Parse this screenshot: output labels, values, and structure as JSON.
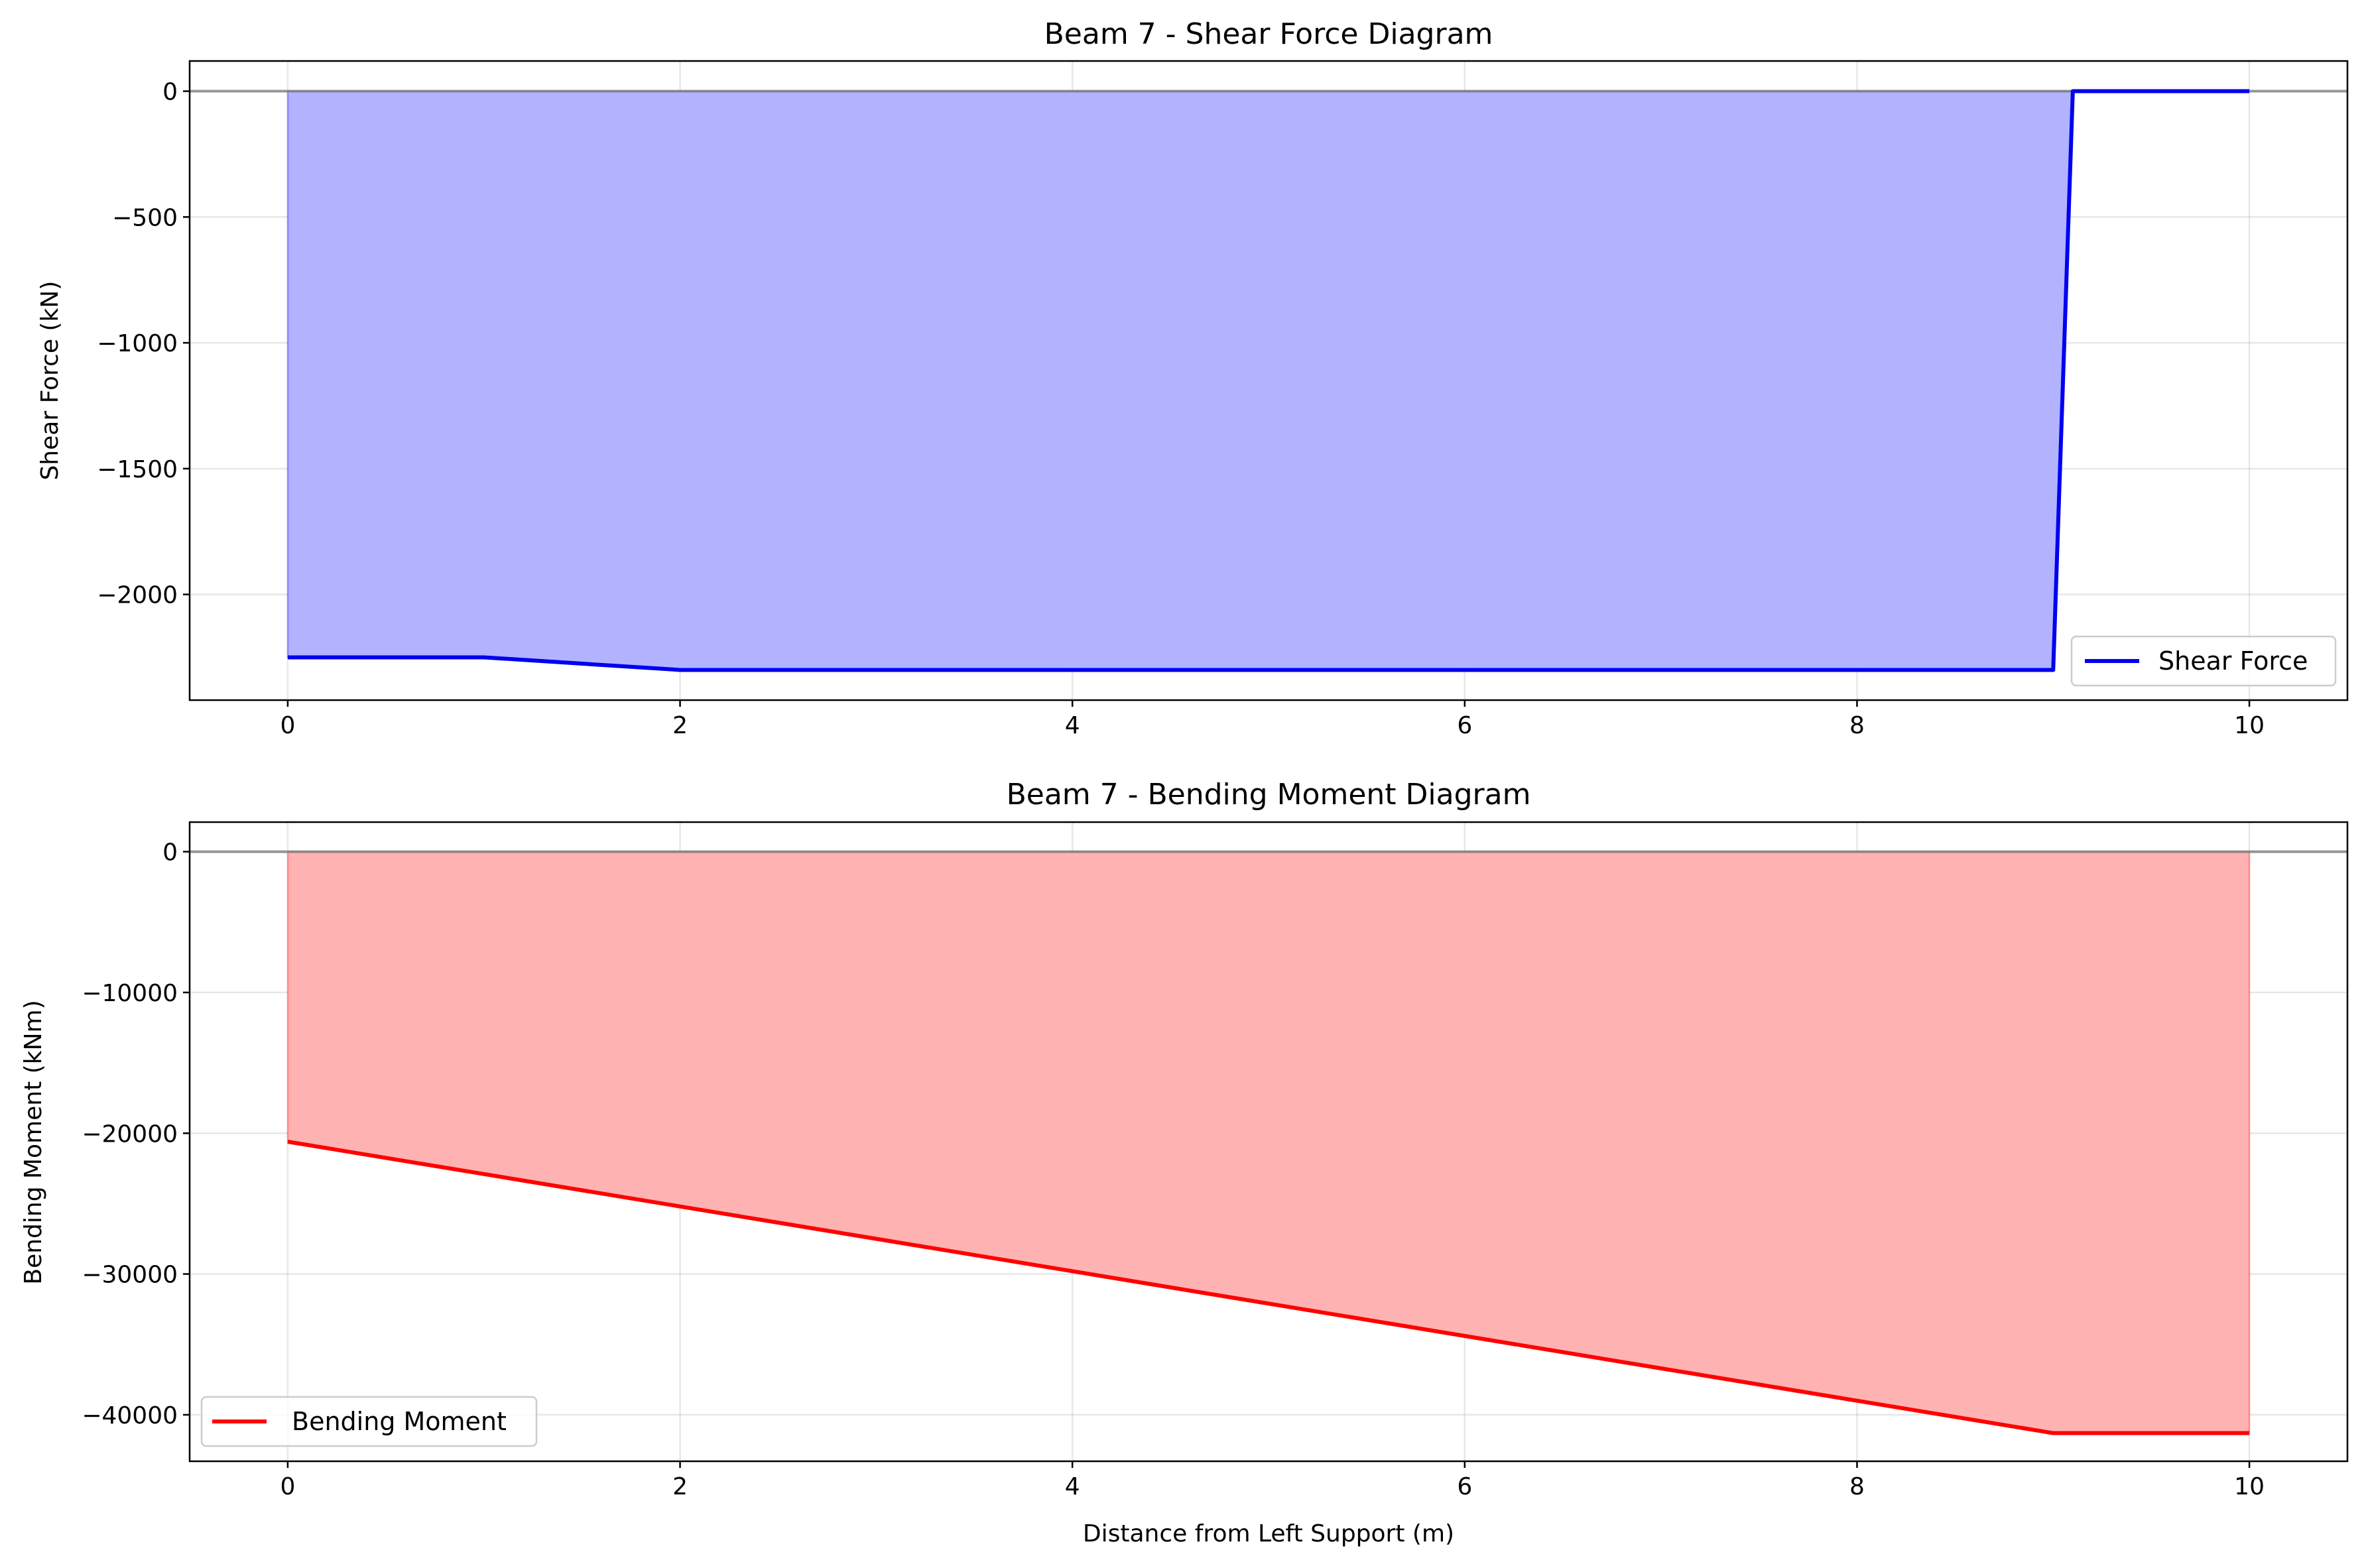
{
  "chart_data": [
    {
      "type": "area",
      "title": "Beam 7 - Shear Force Diagram",
      "xlabel": "",
      "ylabel": "Shear Force (kN)",
      "xlim": [
        -0.5,
        10.5
      ],
      "ylim": [
        -2420,
        120
      ],
      "xticks": [
        0,
        2,
        4,
        6,
        8,
        10
      ],
      "xtick_labels": [
        "0",
        "2",
        "4",
        "6",
        "8",
        "10"
      ],
      "yticks": [
        0,
        -500,
        -1000,
        -1500,
        -2000
      ],
      "ytick_labels": [
        "0",
        "−500",
        "−1000",
        "−1500",
        "−2000"
      ],
      "grid": true,
      "legend_position": "lower-right",
      "baseline": 0,
      "series": [
        {
          "name": "Shear Force",
          "color": "#0000ee",
          "fill_color": "#b2b2fe",
          "x": [
            0,
            1,
            2,
            9,
            9.1,
            10
          ],
          "y": [
            -2250,
            -2250,
            -2300,
            -2300,
            0,
            0
          ]
        }
      ]
    },
    {
      "type": "area",
      "title": "Beam 7 - Bending Moment Diagram",
      "xlabel": "Distance from Left Support (m)",
      "ylabel": "Bending Moment (kNm)",
      "xlim": [
        -0.5,
        10.5
      ],
      "ylim": [
        -43300,
        2100
      ],
      "xticks": [
        0,
        2,
        4,
        6,
        8,
        10
      ],
      "xtick_labels": [
        "0",
        "2",
        "4",
        "6",
        "8",
        "10"
      ],
      "yticks": [
        0,
        -10000,
        -20000,
        -30000,
        -40000
      ],
      "ytick_labels": [
        "0",
        "−10000",
        "−20000",
        "−30000",
        "−40000"
      ],
      "grid": true,
      "legend_position": "lower-left",
      "baseline": 0,
      "series": [
        {
          "name": "Bending Moment",
          "color": "#ff0000",
          "fill_color": "#feb2b2",
          "x": [
            0,
            1,
            2,
            3,
            4,
            5,
            6,
            7,
            8,
            9,
            10
          ],
          "y": [
            -20600,
            -22900,
            -25200,
            -27500,
            -29800,
            -32100,
            -34400,
            -36700,
            -39000,
            -41300,
            -41300
          ]
        }
      ]
    }
  ]
}
